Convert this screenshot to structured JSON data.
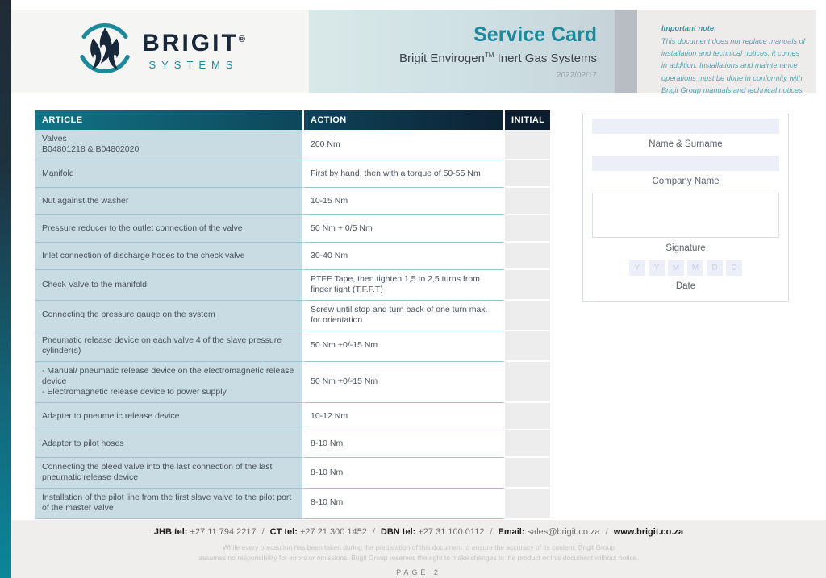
{
  "header": {
    "logo": {
      "brand": "BRIGIT",
      "registered": "®",
      "sub": "SYSTEMS"
    },
    "title": "Service Card",
    "subtitle": {
      "pre": "Brigit Envirogen",
      "tm": "TM",
      "post": " Inert Gas Systems"
    },
    "date": "2022/02/17",
    "note": {
      "title": "Important note:",
      "body": "This document does not replace manuals of installation and technical notices, it comes in addition. Installations and maintenance operations must be done in conformity with Brigit Group manuals and technical notices."
    }
  },
  "table": {
    "columns": [
      "ARTICLE",
      "ACTION",
      "INITIAL"
    ],
    "rows": [
      {
        "article": [
          "Valves",
          "B04801218 & B04802020"
        ],
        "action": "200 Nm"
      },
      {
        "article": [
          "Manifold"
        ],
        "action": "First by hand, then with a torque of 50-55 Nm"
      },
      {
        "article": [
          "Nut against the washer"
        ],
        "action": "10-15 Nm"
      },
      {
        "article": [
          "Pressure reducer to the outlet connection of the valve"
        ],
        "action": "50 Nm + 0/5 Nm"
      },
      {
        "article": [
          "Inlet connection of discharge hoses to the check valve"
        ],
        "action": "30-40 Nm"
      },
      {
        "article": [
          "Check Valve to the manifold"
        ],
        "action": "PTFE Tape, then tighten 1,5 to 2,5 turns from finger tight (T.F.F.T)"
      },
      {
        "article": [
          "Connecting the pressure gauge on the system"
        ],
        "action": "Screw until stop and turn back of one turn max. for orientation"
      },
      {
        "article": [
          "Pneumatic release device on each valve 4 of the slave pressure cylinder(s)"
        ],
        "action": "50 Nm +0/-15 Nm"
      },
      {
        "article": [
          "- Manual/ pneumatic release device on the electromagnetic release device",
          "- Electromagnetic release device to power supply"
        ],
        "action": "50 Nm +0/-15 Nm"
      },
      {
        "article": [
          "Adapter to pneumetic release device"
        ],
        "action": "10-12 Nm"
      },
      {
        "article": [
          "Adapter to pilot hoses"
        ],
        "action": "8-10 Nm"
      },
      {
        "article": [
          "Connecting the bleed valve into the last connection of the last pneumatic release device"
        ],
        "action": "8-10 Nm"
      },
      {
        "article": [
          "Installation of the pilot line from the first slave valve to the pilot port of the master valve"
        ],
        "action": "8-10 Nm"
      }
    ]
  },
  "form": {
    "name_label": "Name & Surname",
    "company_label": "Company Name",
    "signature_label": "Signature",
    "date_label": "Date",
    "date_boxes": [
      "Y",
      "Y",
      "M",
      "M",
      "D",
      "D"
    ]
  },
  "footer": {
    "contacts": [
      {
        "label": "JHB tel:",
        "value": "+27 11 794 2217"
      },
      {
        "label": "CT tel:",
        "value": "+27 21 300 1452"
      },
      {
        "label": "DBN tel:",
        "value": "+27 31 100 0112"
      },
      {
        "label": "Email:",
        "value": "sales@brigit.co.za"
      }
    ],
    "separator": "/",
    "website": "www.brigit.co.za",
    "disclaimer_line1": "While every precaution has been taken during the preparation of this document to ensure the accuracy of its content, Brigit Group",
    "disclaimer_line2": "assumes no responsibility for errors or omissions. Brigit Group reserves the right to make changes to the product or this document without notice.",
    "page": "PAGE 2"
  },
  "colors": {
    "accent_teal": "#1b8a9c",
    "dark_navy": "#0d1f31",
    "article_cell_bg": "#c9dce3",
    "field_lavender": "#eceef8"
  }
}
